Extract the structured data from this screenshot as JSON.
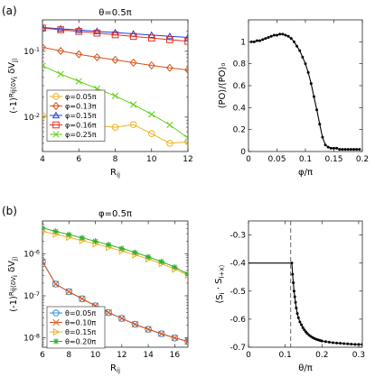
{
  "panel_labels": {
    "a": "(a)",
    "b": "(b)"
  },
  "chart_data": [
    {
      "id": "a-left",
      "type": "line",
      "title": "θ=0.5π",
      "xlabel": "R_ij",
      "ylabel": "(-1)^R_ij⟨δV_i δV_j⟩",
      "ylog": true,
      "xlim": [
        4,
        12
      ],
      "ylim": [
        0.003,
        0.3
      ],
      "xticks": [
        4,
        6,
        8,
        10,
        12
      ],
      "yticks": [
        {
          "v": 0.01,
          "label": "10^-2"
        },
        {
          "v": 0.1,
          "label": "10^-1"
        }
      ],
      "legend_position": "bottom-left",
      "series": [
        {
          "name": "φ=0.05π",
          "color": "#edb120",
          "marker": "circle",
          "x": [
            4,
            5,
            6,
            7,
            8,
            9,
            10,
            11,
            12
          ],
          "y": [
            0.0105,
            0.0095,
            0.0078,
            0.0074,
            0.007,
            0.0077,
            0.0056,
            0.004,
            0.0042
          ]
        },
        {
          "name": "φ=0.13π",
          "color": "#d95319",
          "marker": "diamond",
          "x": [
            4,
            5,
            6,
            7,
            8,
            9,
            10,
            11,
            12
          ],
          "y": [
            0.115,
            0.101,
            0.09,
            0.081,
            0.074,
            0.067,
            0.061,
            0.056,
            0.052
          ]
        },
        {
          "name": "φ=0.15π",
          "color": "#1f3fe0",
          "marker": "triangle",
          "x": [
            4,
            5,
            6,
            7,
            8,
            9,
            10,
            11,
            12
          ],
          "y": [
            0.23,
            0.219,
            0.21,
            0.201,
            0.192,
            0.184,
            0.176,
            0.169,
            0.162
          ]
        },
        {
          "name": "φ=0.16π",
          "color": "#e0301e",
          "marker": "square",
          "x": [
            4,
            5,
            6,
            7,
            8,
            9,
            10,
            11,
            12
          ],
          "y": [
            0.225,
            0.212,
            0.2,
            0.189,
            0.178,
            0.168,
            0.159,
            0.15,
            0.142
          ]
        },
        {
          "name": "φ=0.25π",
          "color": "#5fd010",
          "marker": "cross",
          "x": [
            4,
            5,
            6,
            7,
            8,
            9,
            10,
            11,
            12
          ],
          "y": [
            0.06,
            0.045,
            0.035,
            0.027,
            0.021,
            0.0155,
            0.011,
            0.0076,
            0.0048
          ]
        }
      ]
    },
    {
      "id": "a-right",
      "type": "line",
      "title": "",
      "xlabel": "φ/π",
      "ylabel": "⟨PO⟩/⟨PO⟩₀",
      "xlim": [
        0,
        0.2
      ],
      "ylim": [
        0,
        1.2
      ],
      "xticks": [
        {
          "v": 0,
          "label": "0"
        },
        {
          "v": 0.05,
          "label": "0.05"
        },
        {
          "v": 0.1,
          "label": "0.1"
        },
        {
          "v": 0.15,
          "label": "0.15"
        },
        {
          "v": 0.2,
          "label": "0.2"
        }
      ],
      "yticks": [
        {
          "v": 0,
          "label": "0"
        },
        {
          "v": 0.2,
          "label": "0.2"
        },
        {
          "v": 0.4,
          "label": "0.4"
        },
        {
          "v": 0.6,
          "label": "0.6"
        },
        {
          "v": 0.8,
          "label": "0.8"
        },
        {
          "v": 1,
          "label": "1"
        }
      ],
      "series": [
        {
          "name": "",
          "color": "#000000",
          "marker": "dot",
          "x": [
            0.005,
            0.01,
            0.015,
            0.02,
            0.025,
            0.03,
            0.035,
            0.04,
            0.045,
            0.05,
            0.055,
            0.06,
            0.065,
            0.07,
            0.075,
            0.08,
            0.085,
            0.09,
            0.095,
            0.1,
            0.105,
            0.11,
            0.115,
            0.12,
            0.125,
            0.13,
            0.135,
            0.14,
            0.145,
            0.15,
            0.155,
            0.16,
            0.165,
            0.17,
            0.175,
            0.18,
            0.185,
            0.19,
            0.195
          ],
          "y": [
            1.0,
            1.0,
            1.01,
            1.01,
            1.02,
            1.03,
            1.04,
            1.05,
            1.06,
            1.06,
            1.07,
            1.07,
            1.06,
            1.05,
            1.03,
            1.0,
            0.96,
            0.92,
            0.86,
            0.8,
            0.72,
            0.62,
            0.5,
            0.38,
            0.25,
            0.13,
            0.06,
            0.04,
            0.03,
            0.03,
            0.03,
            0.02,
            0.02,
            0.02,
            0.02,
            0.02,
            0.02,
            0.02,
            0.02
          ]
        }
      ]
    },
    {
      "id": "b-left",
      "type": "line",
      "title": "φ=0.5π",
      "xlabel": "R_ij",
      "ylabel": "(-1)^R_ij⟨δV_i δV_j⟩",
      "ylog": true,
      "xlim": [
        6,
        17
      ],
      "ylim": [
        6e-09,
        6e-06
      ],
      "xticks": [
        6,
        8,
        10,
        12,
        14,
        16
      ],
      "yticks": [
        {
          "v": 1e-08,
          "label": "10^-8"
        },
        {
          "v": 1e-07,
          "label": "10^-7"
        },
        {
          "v": 1e-06,
          "label": "10^-6"
        }
      ],
      "legend_position": "bottom-left",
      "series": [
        {
          "name": "θ=0.05π",
          "color": "#2f8fd0",
          "marker": "circle",
          "x": [
            6,
            7,
            8,
            9,
            10,
            11,
            12,
            13,
            14,
            15,
            16,
            17
          ],
          "y": [
            6.5e-07,
            1.9e-07,
            1.25e-07,
            8.5e-08,
            5.8e-08,
            4e-08,
            2.9e-08,
            2.1e-08,
            1.6e-08,
            1.25e-08,
            1e-08,
            8.2e-09
          ]
        },
        {
          "name": "θ=0.10π",
          "color": "#d95319",
          "marker": "cross",
          "x": [
            6,
            7,
            8,
            9,
            10,
            11,
            12,
            13,
            14,
            15,
            16,
            17
          ],
          "y": [
            6.5e-07,
            1.9e-07,
            1.25e-07,
            8.5e-08,
            5.8e-08,
            4e-08,
            2.9e-08,
            2.1e-08,
            1.6e-08,
            1.25e-08,
            1e-08,
            8.2e-09
          ]
        },
        {
          "name": "θ=0.15π",
          "color": "#f0b020",
          "marker": "triangle-right",
          "x": [
            6,
            7,
            8,
            9,
            10,
            11,
            12,
            13,
            14,
            15,
            16,
            17
          ],
          "y": [
            3.4e-06,
            2.9e-06,
            2.45e-06,
            2.05e-06,
            1.72e-06,
            1.42e-06,
            1.16e-06,
            9.4e-07,
            7.5e-07,
            5.8e-07,
            4.3e-07,
            3.1e-07
          ]
        },
        {
          "name": "θ=0.20π",
          "color": "#30b030",
          "marker": "star",
          "x": [
            6,
            7,
            8,
            9,
            10,
            11,
            12,
            13,
            14,
            15,
            16,
            17
          ],
          "y": [
            4.1e-06,
            3.4e-06,
            2.85e-06,
            2.38e-06,
            1.98e-06,
            1.64e-06,
            1.33e-06,
            1.07e-06,
            8.4e-07,
            6.5e-07,
            4.8e-07,
            3.3e-07
          ]
        }
      ]
    },
    {
      "id": "b-right",
      "type": "line",
      "title": "",
      "xlabel": "θ/π",
      "ylabel": "⟨S_i · S_i+x⟩",
      "xlim": [
        0,
        0.31
      ],
      "ylim": [
        -0.7,
        -0.25
      ],
      "xticks": [
        {
          "v": 0,
          "label": "0"
        },
        {
          "v": 0.1,
          "label": "0.1"
        },
        {
          "v": 0.2,
          "label": "0.2"
        },
        {
          "v": 0.3,
          "label": "0.3"
        }
      ],
      "yticks": [
        {
          "v": -0.7,
          "label": "-0.7"
        },
        {
          "v": -0.6,
          "label": "-0.6"
        },
        {
          "v": -0.5,
          "label": "-0.5"
        },
        {
          "v": -0.4,
          "label": "-0.4"
        },
        {
          "v": -0.3,
          "label": "-0.3"
        }
      ],
      "vline": 0.115,
      "series": [
        {
          "name": "",
          "color": "#000000",
          "marker": "none",
          "x": [
            0.0,
            0.02,
            0.04,
            0.06,
            0.08,
            0.1,
            0.118
          ],
          "y": [
            -0.4,
            -0.4,
            -0.4,
            -0.4,
            -0.4,
            -0.4,
            -0.4
          ]
        },
        {
          "name": "",
          "color": "#000000",
          "marker": "dot",
          "x": [
            0.118,
            0.12,
            0.122,
            0.124,
            0.126,
            0.128,
            0.13,
            0.133,
            0.136,
            0.14,
            0.144,
            0.148,
            0.152,
            0.156,
            0.16,
            0.165,
            0.17,
            0.175,
            0.18,
            0.185,
            0.19,
            0.195,
            0.2,
            0.21,
            0.22,
            0.23,
            0.24,
            0.25,
            0.26,
            0.27,
            0.28,
            0.29,
            0.3,
            0.31
          ],
          "y": [
            -0.4,
            -0.44,
            -0.47,
            -0.5,
            -0.52,
            -0.54,
            -0.56,
            -0.58,
            -0.595,
            -0.61,
            -0.62,
            -0.63,
            -0.638,
            -0.645,
            -0.651,
            -0.657,
            -0.662,
            -0.666,
            -0.669,
            -0.672,
            -0.674,
            -0.676,
            -0.678,
            -0.68,
            -0.682,
            -0.684,
            -0.685,
            -0.686,
            -0.687,
            -0.688,
            -0.689,
            -0.69,
            -0.69,
            -0.69
          ]
        }
      ]
    }
  ]
}
